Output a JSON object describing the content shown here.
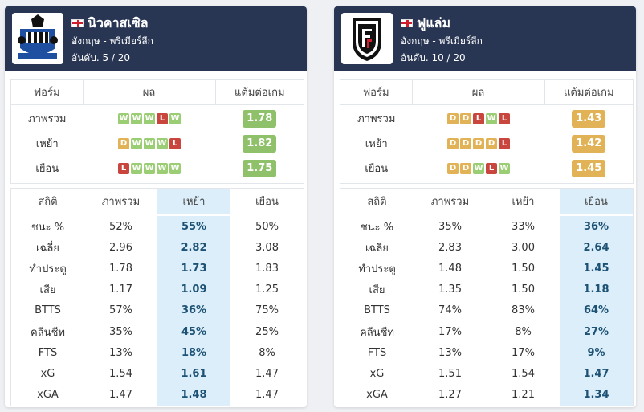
{
  "teams": [
    {
      "name": "นิวคาสเซิล",
      "league": "อังกฤษ - พรีเมียร์ลีก",
      "rank": "อันดับ. 5 / 20",
      "logo_icon": "newcastle-crest-icon",
      "form_headers": [
        "ฟอร์ม",
        "ผล",
        "แต้มต่อเกม"
      ],
      "form_rows": [
        {
          "label": "ภาพรวม",
          "results": [
            "W",
            "W",
            "W",
            "L",
            "W"
          ],
          "ppg": "1.78",
          "ppg_color": "#8fc16a"
        },
        {
          "label": "เหย้า",
          "results": [
            "D",
            "W",
            "W",
            "W",
            "L"
          ],
          "ppg": "1.82",
          "ppg_color": "#8fc16a"
        },
        {
          "label": "เยือน",
          "results": [
            "L",
            "W",
            "W",
            "W",
            "W"
          ],
          "ppg": "1.75",
          "ppg_color": "#8fc16a"
        }
      ],
      "stat_headers": [
        "สถิติ",
        "ภาพรวม",
        "เหย้า",
        "เยือน"
      ],
      "highlight_col": 2,
      "stats": [
        {
          "label": "ชนะ %",
          "values": [
            "52%",
            "55%",
            "50%"
          ]
        },
        {
          "label": "เฉลี่ย",
          "values": [
            "2.96",
            "2.82",
            "3.08"
          ]
        },
        {
          "label": "ทำประตู",
          "values": [
            "1.78",
            "1.73",
            "1.83"
          ]
        },
        {
          "label": "เสีย",
          "values": [
            "1.17",
            "1.09",
            "1.25"
          ]
        },
        {
          "label": "BTTS",
          "values": [
            "57%",
            "36%",
            "75%"
          ]
        },
        {
          "label": "คลีนชีท",
          "values": [
            "35%",
            "45%",
            "25%"
          ]
        },
        {
          "label": "FTS",
          "values": [
            "13%",
            "18%",
            "8%"
          ]
        },
        {
          "label": "xG",
          "values": [
            "1.54",
            "1.61",
            "1.47"
          ]
        },
        {
          "label": "xGA",
          "values": [
            "1.47",
            "1.48",
            "1.47"
          ]
        }
      ]
    },
    {
      "name": "ฟูแล่ม",
      "league": "อังกฤษ - พรีเมียร์ลีก",
      "rank": "อันดับ. 10 / 20",
      "logo_icon": "fulham-crest-icon",
      "form_headers": [
        "ฟอร์ม",
        "ผล",
        "แต้มต่อเกม"
      ],
      "form_rows": [
        {
          "label": "ภาพรวม",
          "results": [
            "D",
            "D",
            "L",
            "W",
            "L"
          ],
          "ppg": "1.43",
          "ppg_color": "#e2b356"
        },
        {
          "label": "เหย้า",
          "results": [
            "D",
            "D",
            "D",
            "D",
            "L"
          ],
          "ppg": "1.42",
          "ppg_color": "#e2b356"
        },
        {
          "label": "เยือน",
          "results": [
            "D",
            "D",
            "W",
            "L",
            "W"
          ],
          "ppg": "1.45",
          "ppg_color": "#e2b356"
        }
      ],
      "stat_headers": [
        "สถิติ",
        "ภาพรวม",
        "เหย้า",
        "เยือน"
      ],
      "highlight_col": 3,
      "stats": [
        {
          "label": "ชนะ %",
          "values": [
            "35%",
            "33%",
            "36%"
          ]
        },
        {
          "label": "เฉลี่ย",
          "values": [
            "2.83",
            "3.00",
            "2.64"
          ]
        },
        {
          "label": "ทำประตู",
          "values": [
            "1.48",
            "1.50",
            "1.45"
          ]
        },
        {
          "label": "เสีย",
          "values": [
            "1.35",
            "1.50",
            "1.18"
          ]
        },
        {
          "label": "BTTS",
          "values": [
            "74%",
            "83%",
            "64%"
          ]
        },
        {
          "label": "คลีนชีท",
          "values": [
            "17%",
            "8%",
            "27%"
          ]
        },
        {
          "label": "FTS",
          "values": [
            "13%",
            "17%",
            "9%"
          ]
        },
        {
          "label": "xG",
          "values": [
            "1.51",
            "1.54",
            "1.47"
          ]
        },
        {
          "label": "xGA",
          "values": [
            "1.27",
            "1.21",
            "1.34"
          ]
        }
      ]
    }
  ],
  "colors": {
    "header_bg": "#283654",
    "win": "#9acd74",
    "draw": "#e2b356",
    "loss": "#c9463f",
    "highlight_bg": "#dbeefa",
    "highlight_text": "#1d5275"
  }
}
